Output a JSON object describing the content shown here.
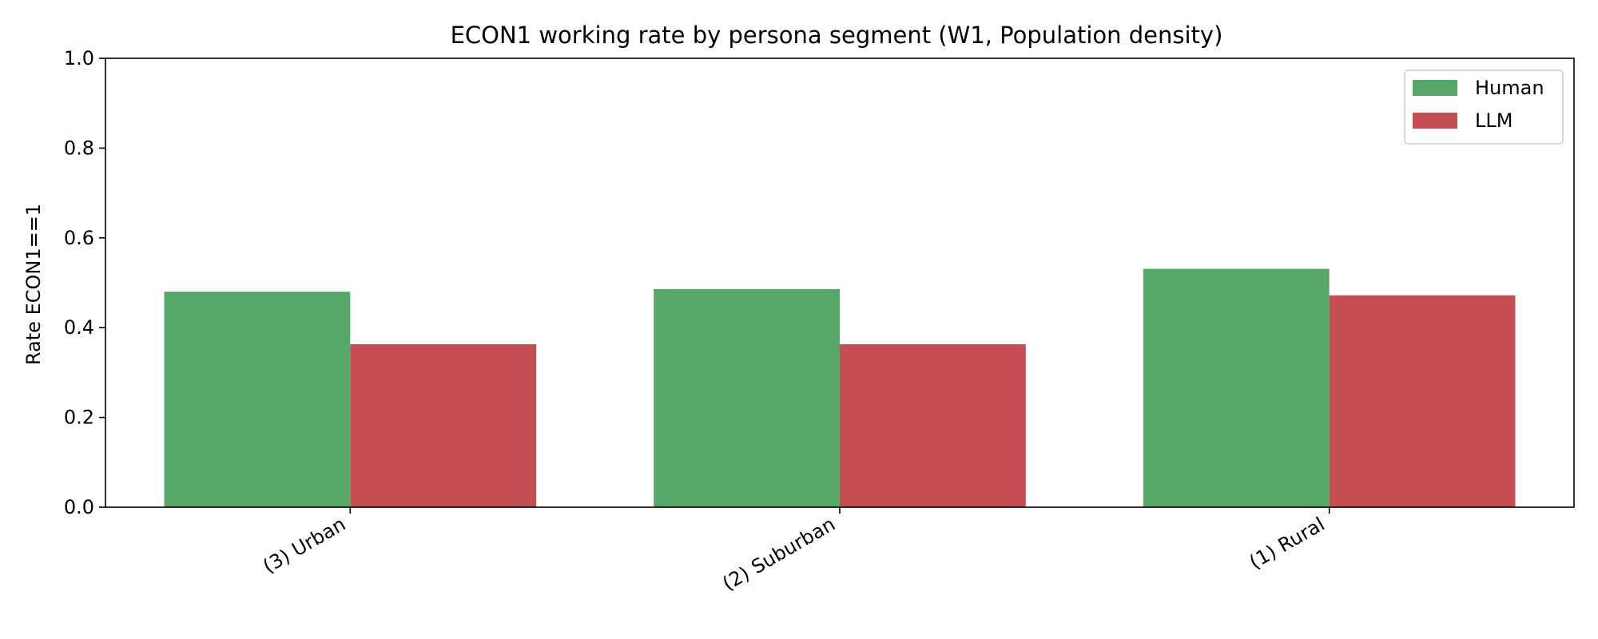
{
  "chart_data": {
    "type": "bar",
    "title": "ECON1 working rate by persona segment (W1, Population density)",
    "xlabel": "",
    "ylabel": "Rate ECON1==1",
    "ylim": [
      0,
      1.0
    ],
    "yticks": [
      "0.0",
      "0.2",
      "0.4",
      "0.6",
      "0.8",
      "1.0"
    ],
    "categories": [
      "(3) Urban",
      "(2) Suburban",
      "(1) Rural"
    ],
    "series": [
      {
        "name": "Human",
        "color": "#55a868",
        "values": [
          0.48,
          0.486,
          0.531
        ]
      },
      {
        "name": "LLM",
        "color": "#c44e52",
        "values": [
          0.363,
          0.363,
          0.472
        ]
      }
    ],
    "grid": false,
    "legend_position": "top-right"
  }
}
